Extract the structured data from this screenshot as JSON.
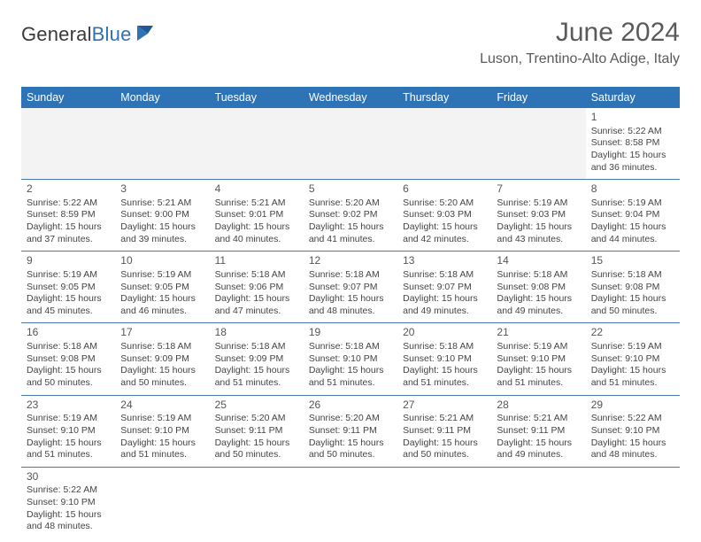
{
  "brand": {
    "general": "General",
    "blue": "Blue"
  },
  "header": {
    "month_title": "June 2024",
    "location": "Luson, Trentino-Alto Adige, Italy"
  },
  "colors": {
    "accent": "#2f73b7",
    "text": "#333333",
    "muted_bg": "#f3f3f3",
    "grid_line": "#4a7ba8"
  },
  "day_headers": [
    "Sunday",
    "Monday",
    "Tuesday",
    "Wednesday",
    "Thursday",
    "Friday",
    "Saturday"
  ],
  "days": {
    "d1": {
      "n": "1",
      "sr": "Sunrise: 5:22 AM",
      "ss": "Sunset: 8:58 PM",
      "dl": "Daylight: 15 hours and 36 minutes."
    },
    "d2": {
      "n": "2",
      "sr": "Sunrise: 5:22 AM",
      "ss": "Sunset: 8:59 PM",
      "dl": "Daylight: 15 hours and 37 minutes."
    },
    "d3": {
      "n": "3",
      "sr": "Sunrise: 5:21 AM",
      "ss": "Sunset: 9:00 PM",
      "dl": "Daylight: 15 hours and 39 minutes."
    },
    "d4": {
      "n": "4",
      "sr": "Sunrise: 5:21 AM",
      "ss": "Sunset: 9:01 PM",
      "dl": "Daylight: 15 hours and 40 minutes."
    },
    "d5": {
      "n": "5",
      "sr": "Sunrise: 5:20 AM",
      "ss": "Sunset: 9:02 PM",
      "dl": "Daylight: 15 hours and 41 minutes."
    },
    "d6": {
      "n": "6",
      "sr": "Sunrise: 5:20 AM",
      "ss": "Sunset: 9:03 PM",
      "dl": "Daylight: 15 hours and 42 minutes."
    },
    "d7": {
      "n": "7",
      "sr": "Sunrise: 5:19 AM",
      "ss": "Sunset: 9:03 PM",
      "dl": "Daylight: 15 hours and 43 minutes."
    },
    "d8": {
      "n": "8",
      "sr": "Sunrise: 5:19 AM",
      "ss": "Sunset: 9:04 PM",
      "dl": "Daylight: 15 hours and 44 minutes."
    },
    "d9": {
      "n": "9",
      "sr": "Sunrise: 5:19 AM",
      "ss": "Sunset: 9:05 PM",
      "dl": "Daylight: 15 hours and 45 minutes."
    },
    "d10": {
      "n": "10",
      "sr": "Sunrise: 5:19 AM",
      "ss": "Sunset: 9:05 PM",
      "dl": "Daylight: 15 hours and 46 minutes."
    },
    "d11": {
      "n": "11",
      "sr": "Sunrise: 5:18 AM",
      "ss": "Sunset: 9:06 PM",
      "dl": "Daylight: 15 hours and 47 minutes."
    },
    "d12": {
      "n": "12",
      "sr": "Sunrise: 5:18 AM",
      "ss": "Sunset: 9:07 PM",
      "dl": "Daylight: 15 hours and 48 minutes."
    },
    "d13": {
      "n": "13",
      "sr": "Sunrise: 5:18 AM",
      "ss": "Sunset: 9:07 PM",
      "dl": "Daylight: 15 hours and 49 minutes."
    },
    "d14": {
      "n": "14",
      "sr": "Sunrise: 5:18 AM",
      "ss": "Sunset: 9:08 PM",
      "dl": "Daylight: 15 hours and 49 minutes."
    },
    "d15": {
      "n": "15",
      "sr": "Sunrise: 5:18 AM",
      "ss": "Sunset: 9:08 PM",
      "dl": "Daylight: 15 hours and 50 minutes."
    },
    "d16": {
      "n": "16",
      "sr": "Sunrise: 5:18 AM",
      "ss": "Sunset: 9:08 PM",
      "dl": "Daylight: 15 hours and 50 minutes."
    },
    "d17": {
      "n": "17",
      "sr": "Sunrise: 5:18 AM",
      "ss": "Sunset: 9:09 PM",
      "dl": "Daylight: 15 hours and 50 minutes."
    },
    "d18": {
      "n": "18",
      "sr": "Sunrise: 5:18 AM",
      "ss": "Sunset: 9:09 PM",
      "dl": "Daylight: 15 hours and 51 minutes."
    },
    "d19": {
      "n": "19",
      "sr": "Sunrise: 5:18 AM",
      "ss": "Sunset: 9:10 PM",
      "dl": "Daylight: 15 hours and 51 minutes."
    },
    "d20": {
      "n": "20",
      "sr": "Sunrise: 5:18 AM",
      "ss": "Sunset: 9:10 PM",
      "dl": "Daylight: 15 hours and 51 minutes."
    },
    "d21": {
      "n": "21",
      "sr": "Sunrise: 5:19 AM",
      "ss": "Sunset: 9:10 PM",
      "dl": "Daylight: 15 hours and 51 minutes."
    },
    "d22": {
      "n": "22",
      "sr": "Sunrise: 5:19 AM",
      "ss": "Sunset: 9:10 PM",
      "dl": "Daylight: 15 hours and 51 minutes."
    },
    "d23": {
      "n": "23",
      "sr": "Sunrise: 5:19 AM",
      "ss": "Sunset: 9:10 PM",
      "dl": "Daylight: 15 hours and 51 minutes."
    },
    "d24": {
      "n": "24",
      "sr": "Sunrise: 5:19 AM",
      "ss": "Sunset: 9:10 PM",
      "dl": "Daylight: 15 hours and 51 minutes."
    },
    "d25": {
      "n": "25",
      "sr": "Sunrise: 5:20 AM",
      "ss": "Sunset: 9:11 PM",
      "dl": "Daylight: 15 hours and 50 minutes."
    },
    "d26": {
      "n": "26",
      "sr": "Sunrise: 5:20 AM",
      "ss": "Sunset: 9:11 PM",
      "dl": "Daylight: 15 hours and 50 minutes."
    },
    "d27": {
      "n": "27",
      "sr": "Sunrise: 5:21 AM",
      "ss": "Sunset: 9:11 PM",
      "dl": "Daylight: 15 hours and 50 minutes."
    },
    "d28": {
      "n": "28",
      "sr": "Sunrise: 5:21 AM",
      "ss": "Sunset: 9:11 PM",
      "dl": "Daylight: 15 hours and 49 minutes."
    },
    "d29": {
      "n": "29",
      "sr": "Sunrise: 5:22 AM",
      "ss": "Sunset: 9:10 PM",
      "dl": "Daylight: 15 hours and 48 minutes."
    },
    "d30": {
      "n": "30",
      "sr": "Sunrise: 5:22 AM",
      "ss": "Sunset: 9:10 PM",
      "dl": "Daylight: 15 hours and 48 minutes."
    }
  },
  "layout": {
    "type": "calendar",
    "columns": 7,
    "weeks": [
      [
        null,
        null,
        null,
        null,
        null,
        null,
        "d1"
      ],
      [
        "d2",
        "d3",
        "d4",
        "d5",
        "d6",
        "d7",
        "d8"
      ],
      [
        "d9",
        "d10",
        "d11",
        "d12",
        "d13",
        "d14",
        "d15"
      ],
      [
        "d16",
        "d17",
        "d18",
        "d19",
        "d20",
        "d21",
        "d22"
      ],
      [
        "d23",
        "d24",
        "d25",
        "d26",
        "d27",
        "d28",
        "d29"
      ],
      [
        "d30",
        null,
        null,
        null,
        null,
        null,
        null
      ]
    ],
    "font_family": "Arial",
    "header_fontsize": 30,
    "cell_fontsize": 10.5,
    "dow_fontsize": 12.5
  }
}
